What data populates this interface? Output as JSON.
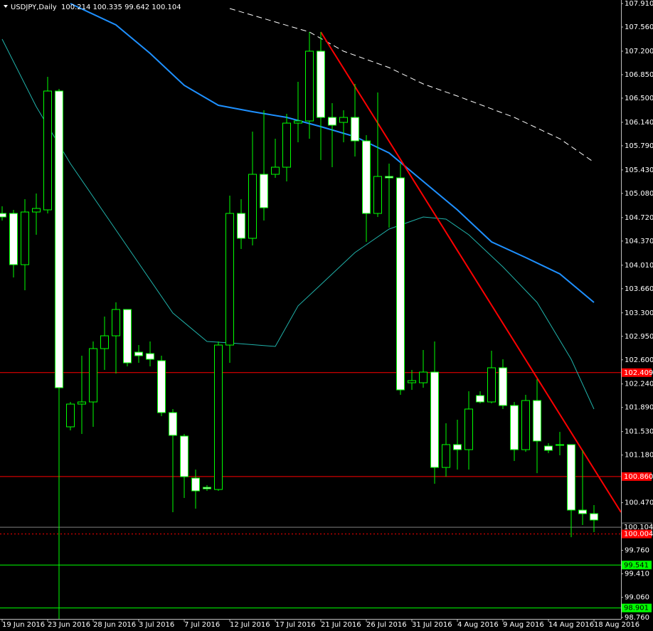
{
  "chart_data": {
    "type": "candlestick",
    "title": "USDJPY,Daily",
    "subtitle": "100.214 100.335 99.642 100.104",
    "bull_color": "#00ff00",
    "bear_color": "#ffffff",
    "open": [
      104.782,
      104.782,
      104.018,
      104.803,
      104.835,
      106.606,
      101.601,
      101.94,
      101.972,
      102.767,
      102.958,
      103.35,
      102.714,
      102.693,
      102.587,
      101.813,
      101.463,
      100.837,
      100.699,
      100.667,
      102.82,
      104.782,
      104.411,
      105.365,
      105.365,
      105.471,
      106.128,
      106.16,
      107.2,
      106.213,
      106.139,
      106.213,
      105.863,
      104.782,
      105.333,
      105.312,
      102.258,
      102.258,
      102.417,
      100.996,
      101.336,
      101.261,
      102.067,
      101.972,
      102.481,
      101.919,
      101.261,
      101.993,
      101.314,
      101.336,
      101.336,
      100.36,
      100.307
    ],
    "high": [
      104.888,
      104.835,
      104.994,
      105.079,
      106.818,
      106.638,
      101.972,
      102.661,
      102.873,
      103.244,
      103.456,
      103.35,
      102.82,
      102.873,
      102.661,
      101.866,
      101.495,
      100.964,
      100.731,
      102.873,
      105.047,
      104.994,
      106.001,
      106.319,
      105.895,
      106.266,
      106.744,
      107.486,
      107.486,
      106.425,
      106.319,
      106.712,
      105.948,
      106.584,
      105.524,
      105.524,
      102.449,
      102.746,
      102.873,
      101.654,
      101.707,
      102.131,
      102.131,
      102.735,
      102.608,
      101.972,
      102.078,
      102.311,
      101.357,
      101.526,
      101.336,
      101.251,
      100.434
    ],
    "low": [
      104.676,
      103.828,
      103.637,
      104.464,
      104.782,
      98.737,
      101.548,
      101.495,
      101.601,
      102.449,
      102.396,
      102.502,
      102.555,
      102.502,
      101.76,
      100.328,
      100.54,
      100.381,
      100.646,
      100.646,
      102.555,
      104.252,
      104.305,
      104.676,
      105.312,
      105.259,
      105.842,
      105.895,
      105.577,
      105.471,
      105.842,
      105.63,
      104.358,
      104.729,
      104.57,
      102.078,
      102.152,
      102.184,
      100.752,
      100.858,
      100.964,
      100.964,
      101.951,
      101.951,
      101.866,
      101.092,
      101.229,
      100.911,
      101.208,
      101.177,
      99.956,
      100.137,
      100.031
    ],
    "close": [
      104.729,
      104.018,
      104.803,
      104.856,
      106.606,
      102.184,
      101.94,
      101.972,
      102.767,
      102.958,
      103.35,
      102.555,
      102.661,
      102.608,
      101.813,
      101.474,
      100.858,
      100.646,
      100.678,
      102.82,
      104.782,
      104.411,
      105.365,
      104.867,
      105.471,
      106.128,
      106.16,
      107.2,
      106.213,
      106.097,
      106.213,
      105.863,
      104.782,
      105.333,
      105.312,
      102.152,
      102.29,
      102.417,
      100.996,
      101.336,
      101.261,
      101.866,
      101.972,
      102.481,
      101.919,
      101.261,
      101.993,
      101.389,
      101.251,
      101.325,
      100.36,
      100.307,
      100.212
    ],
    "lines": [
      {
        "color": "#1e90ff",
        "width": 2,
        "dash": false,
        "x": [
          6,
          10,
          13,
          16,
          19,
          22,
          25,
          28,
          31,
          34,
          37,
          40,
          43,
          46,
          49,
          52
        ],
        "values": [
          107.91,
          107.592,
          107.168,
          106.691,
          106.394,
          106.298,
          106.213,
          106.076,
          105.927,
          105.683,
          105.259,
          104.835,
          104.358,
          104.125,
          103.881,
          103.456
        ]
      },
      {
        "color": "#20b2aa",
        "width": 1,
        "dash": false,
        "x": [
          0,
          3,
          6,
          9,
          12,
          15,
          18,
          20,
          24,
          26,
          28,
          31,
          34,
          37,
          39,
          41,
          44,
          47,
          50,
          52
        ],
        "values": [
          107.38,
          106.372,
          105.524,
          104.782,
          104.04,
          103.297,
          102.873,
          102.852,
          102.799,
          103.403,
          103.721,
          104.199,
          104.549,
          104.729,
          104.697,
          104.464,
          103.986,
          103.456,
          102.608,
          101.866
        ]
      },
      {
        "color": "#ffffff",
        "width": 1,
        "dash": true,
        "x": [
          20,
          27,
          30,
          34,
          37,
          40,
          45,
          49,
          52
        ],
        "values": [
          107.836,
          107.486,
          107.2,
          106.956,
          106.712,
          106.532,
          106.213,
          105.895,
          105.545
        ]
      },
      {
        "color": "#ff0000",
        "width": 2,
        "dash": false,
        "x": [
          28,
          54.375
        ],
        "values": [
          107.486,
          100.328
        ]
      }
    ],
    "hlines": [
      {
        "value": 102.409,
        "color": "#ff0000",
        "text_color": "#ffffff",
        "style": "solid"
      },
      {
        "value": 100.86,
        "label": "100.860",
        "color": "#ff0000",
        "text_color": "#ffffff",
        "style": "solid"
      },
      {
        "value": 100.104,
        "color": "#808080",
        "text_color": "#ffffff",
        "style": "current"
      },
      {
        "value": 100.004,
        "color": "#ff0000",
        "text_color": "#ffffff",
        "style": "dotted"
      },
      {
        "value": 99.541,
        "color": "#00ff00",
        "text_color": "#000000",
        "style": "solid"
      },
      {
        "value": 98.901,
        "color": "#00ff00",
        "text_color": "#000000",
        "style": "solid"
      }
    ],
    "xlim": [
      -0.1875,
      54.375
    ],
    "ylim": [
      98.738,
      107.963
    ],
    "xticks": [
      {
        "value": 0,
        "label": "19 Jun 2016"
      },
      {
        "value": 4,
        "label": "23 Jun 2016"
      },
      {
        "value": 8,
        "label": "28 Jun 2016"
      },
      {
        "value": 12,
        "label": "3 Jul 2016"
      },
      {
        "value": 16,
        "label": "7 Jul 2016"
      },
      {
        "value": 20,
        "label": "12 Jul 2016"
      },
      {
        "value": 24,
        "label": "17 Jul 2016"
      },
      {
        "value": 28,
        "label": "21 Jul 2016"
      },
      {
        "value": 32,
        "label": "26 Jul 2016"
      },
      {
        "value": 36,
        "label": "31 Jul 2016"
      },
      {
        "value": 40,
        "label": "4 Aug 2016"
      },
      {
        "value": 44,
        "label": "9 Aug 2016"
      },
      {
        "value": 48,
        "label": "14 Aug 2016"
      },
      {
        "value": 52,
        "label": "18 Aug 2016"
      }
    ],
    "yticks": [
      {
        "value": 107.91,
        "label": "107.910"
      },
      {
        "value": 107.56,
        "label": "107.560"
      },
      {
        "value": 107.2,
        "label": "107.200"
      },
      {
        "value": 106.85,
        "label": "106.850"
      },
      {
        "value": 106.5,
        "label": "106.500"
      },
      {
        "value": 106.14,
        "label": "106.140"
      },
      {
        "value": 105.79,
        "label": "105.790"
      },
      {
        "value": 105.43,
        "label": "105.430"
      },
      {
        "value": 105.08,
        "label": "105.080"
      },
      {
        "value": 104.72,
        "label": "104.720"
      },
      {
        "value": 104.37,
        "label": "104.370"
      },
      {
        "value": 104.01,
        "label": "104.010"
      },
      {
        "value": 103.66,
        "label": "103.660"
      },
      {
        "value": 103.3,
        "label": "103.300"
      },
      {
        "value": 102.95,
        "label": "102.950"
      },
      {
        "value": 102.6,
        "label": "102.600"
      },
      {
        "value": 102.24,
        "label": "102.240"
      },
      {
        "value": 101.89,
        "label": "101.890"
      },
      {
        "value": 101.53,
        "label": "101.530"
      },
      {
        "value": 101.18,
        "label": "101.180"
      },
      {
        "value": 100.47,
        "label": "100.470"
      },
      {
        "value": 99.76,
        "label": "99.760"
      },
      {
        "value": 99.41,
        "label": "99.410"
      },
      {
        "value": 99.06,
        "label": "99.060"
      },
      {
        "value": 98.76,
        "label": "98.760"
      }
    ]
  }
}
